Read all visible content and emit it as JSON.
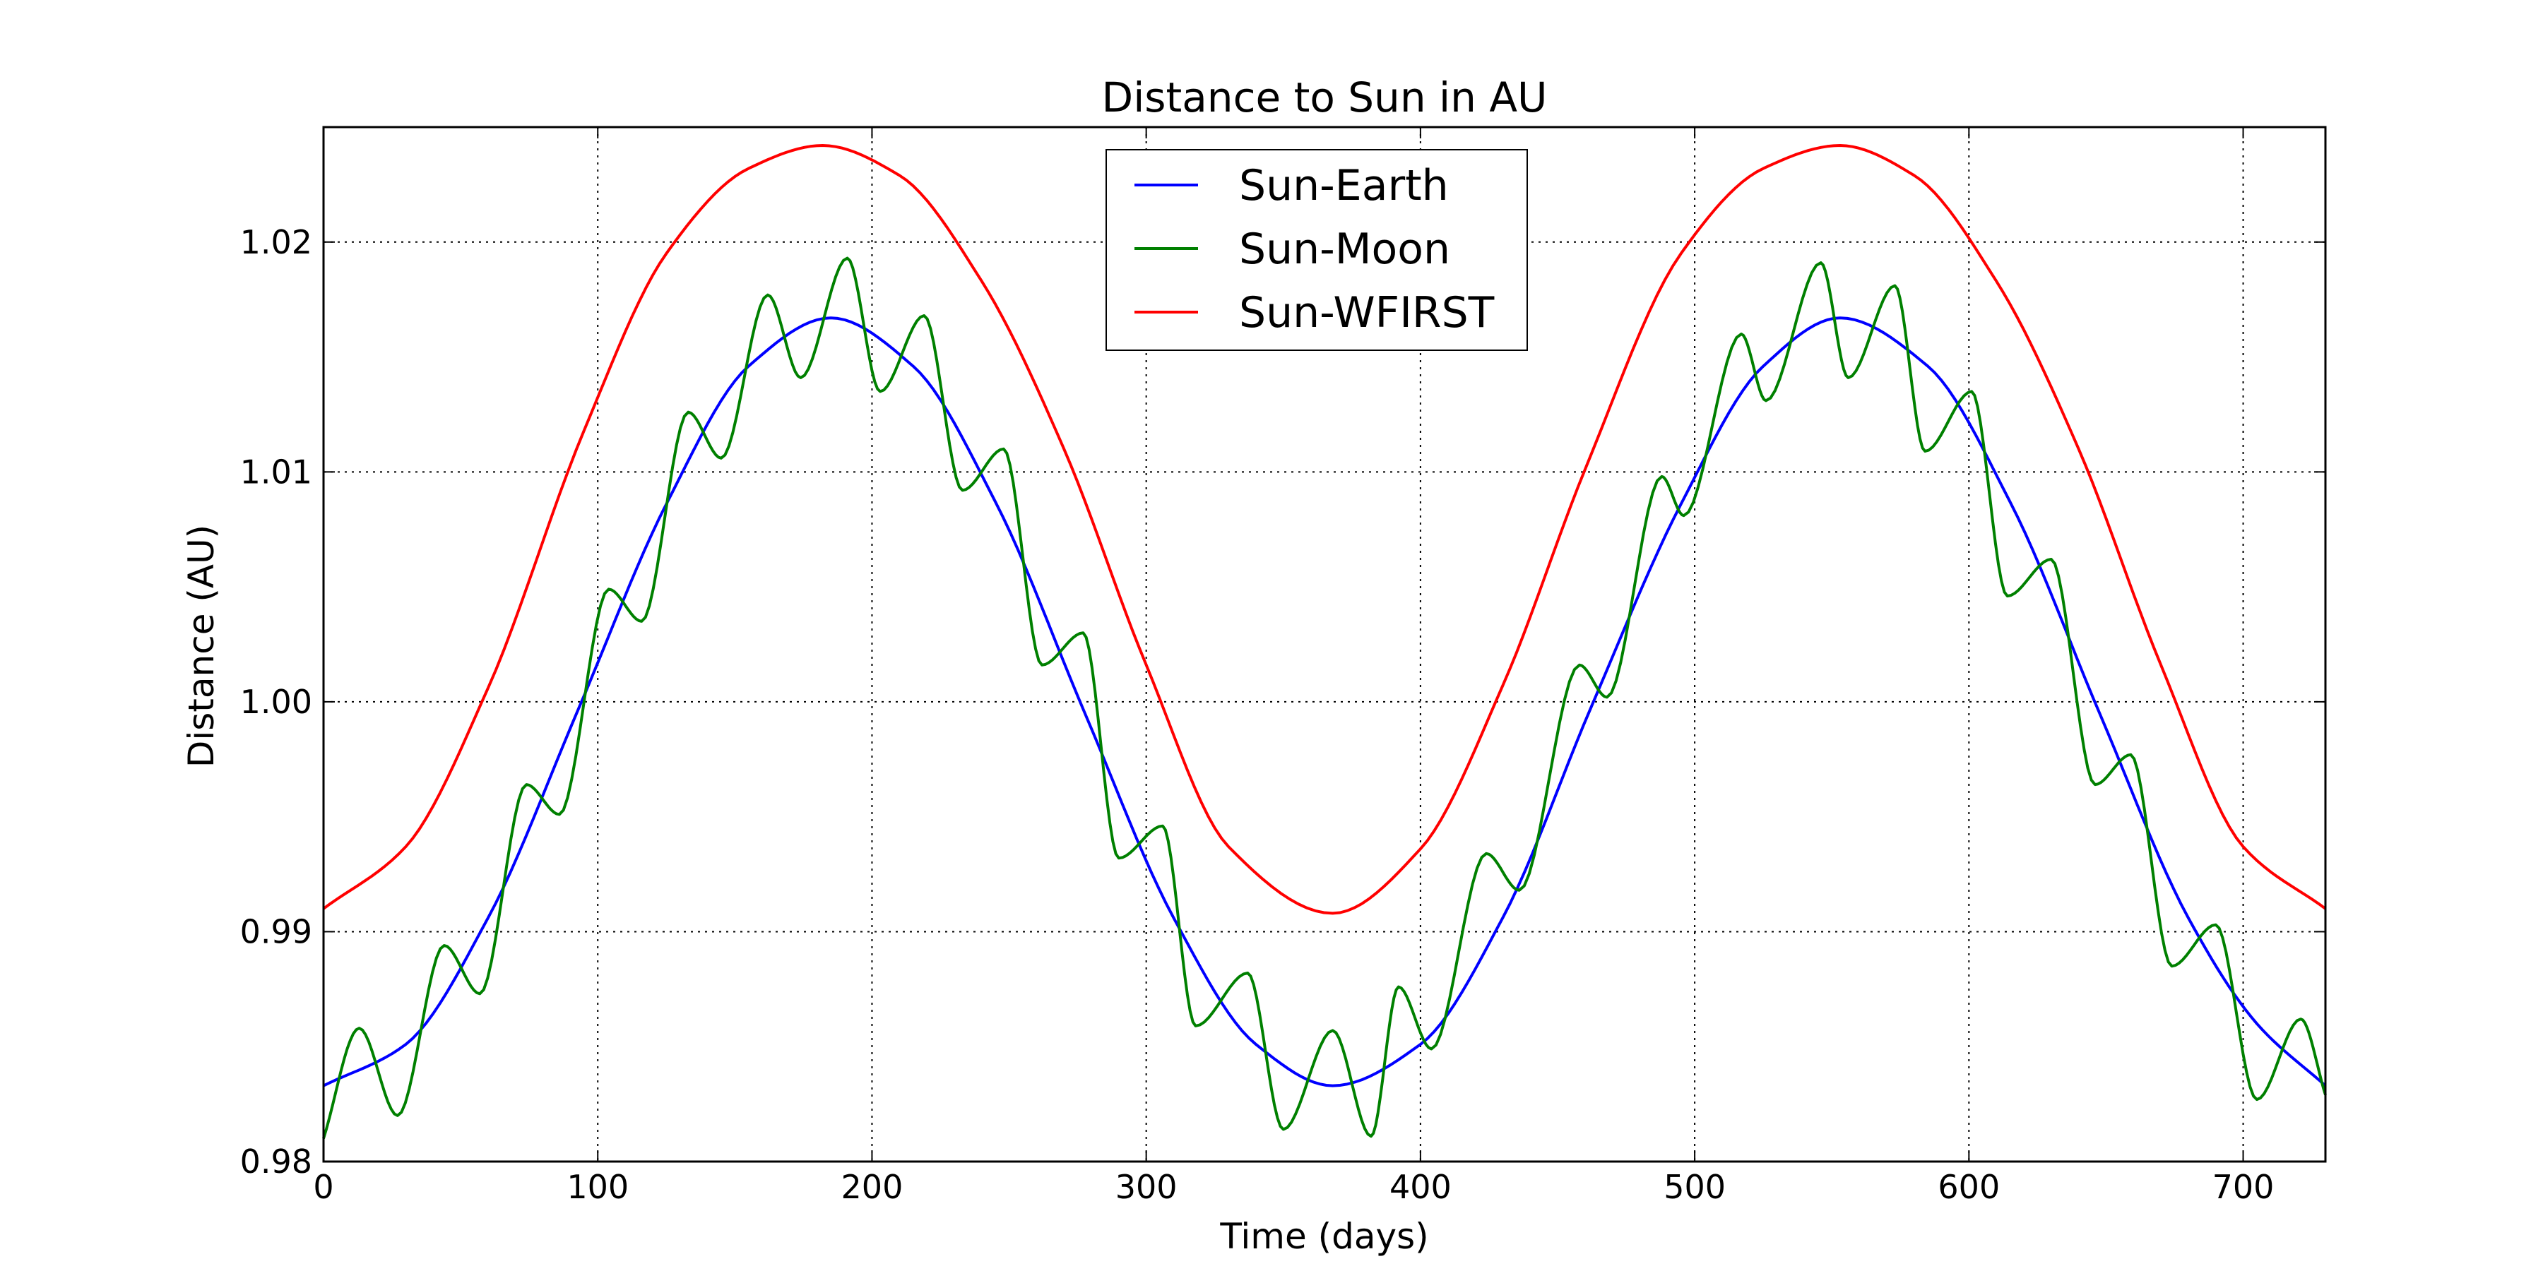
{
  "chart_data": {
    "type": "line",
    "title": "Distance to Sun in AU",
    "xlabel": "Time (days)",
    "ylabel": "Distance (AU)",
    "xlim": [
      0,
      730
    ],
    "ylim": [
      0.98,
      1.025
    ],
    "xticks": [
      0,
      100,
      200,
      300,
      400,
      500,
      600,
      700
    ],
    "xtick_labels": [
      "0",
      "100",
      "200",
      "300",
      "400",
      "500",
      "600",
      "700"
    ],
    "yticks": [
      0.98,
      0.99,
      1.0,
      1.01,
      1.02
    ],
    "ytick_labels": [
      "0.98",
      "0.99",
      "1.00",
      "1.01",
      "1.02"
    ],
    "grid": true,
    "legend_position": "top-center",
    "series": [
      {
        "name": "Sun-Earth",
        "color": "#0000ff",
        "x": [
          0,
          30,
          60,
          93,
          125,
          155,
          185,
          215,
          245,
          278,
          310,
          340,
          368,
          400,
          430,
          462,
          495,
          525,
          553,
          585,
          615,
          648,
          680,
          705,
          730
        ],
        "y": [
          0.9833,
          0.9851,
          0.9906,
          0.9997,
          1.0086,
          1.0146,
          1.0167,
          1.0146,
          1.0087,
          0.9994,
          0.9906,
          0.9851,
          0.9833,
          0.9851,
          0.9906,
          0.9997,
          1.0086,
          1.0146,
          1.0167,
          1.0146,
          1.0087,
          0.9994,
          0.9906,
          0.986,
          0.9833
        ]
      },
      {
        "name": "Sun-Moon",
        "color": "#008000",
        "x": [
          0,
          13,
          27,
          44,
          57,
          74,
          86,
          104,
          116,
          133,
          145,
          162,
          174,
          191,
          203,
          219,
          233,
          248,
          262,
          277,
          290,
          306,
          318,
          337,
          350,
          368,
          382,
          392,
          404,
          424,
          436,
          458,
          468,
          488,
          496,
          517,
          526,
          546,
          556,
          573,
          584,
          601,
          614,
          630,
          646,
          659,
          674,
          690,
          705,
          721,
          730
        ],
        "y": [
          0.981,
          0.9858,
          0.982,
          0.9894,
          0.9873,
          0.9964,
          0.9951,
          1.0049,
          1.0035,
          1.0126,
          1.0106,
          1.0177,
          1.0141,
          1.0193,
          1.0135,
          1.0168,
          1.0092,
          1.011,
          1.0016,
          1.003,
          0.9932,
          0.9946,
          0.9859,
          0.9882,
          0.9814,
          0.9857,
          0.9811,
          0.9876,
          0.9849,
          0.9934,
          0.9918,
          1.0016,
          1.0002,
          1.0098,
          1.0081,
          1.016,
          1.0131,
          1.0191,
          1.0141,
          1.0181,
          1.0109,
          1.0135,
          1.0046,
          1.0062,
          0.9964,
          0.9977,
          0.9885,
          0.9903,
          0.9827,
          0.9862,
          0.9829
        ]
      },
      {
        "name": "Sun-WFIRST",
        "color": "#ff0000",
        "x": [
          0,
          30,
          60,
          95,
          125,
          155,
          182,
          210,
          240,
          270,
          300,
          330,
          368,
          400,
          430,
          460,
          495,
          525,
          553,
          580,
          610,
          640,
          670,
          700,
          730
        ],
        "y": [
          0.991,
          0.9937,
          1.0006,
          1.0118,
          1.0195,
          1.0232,
          1.0242,
          1.0229,
          1.0183,
          1.011,
          1.0016,
          0.9937,
          0.9908,
          0.9936,
          1.0007,
          1.0101,
          1.0195,
          1.0232,
          1.0242,
          1.0229,
          1.0183,
          1.011,
          1.0016,
          0.9937,
          0.991
        ]
      }
    ]
  }
}
